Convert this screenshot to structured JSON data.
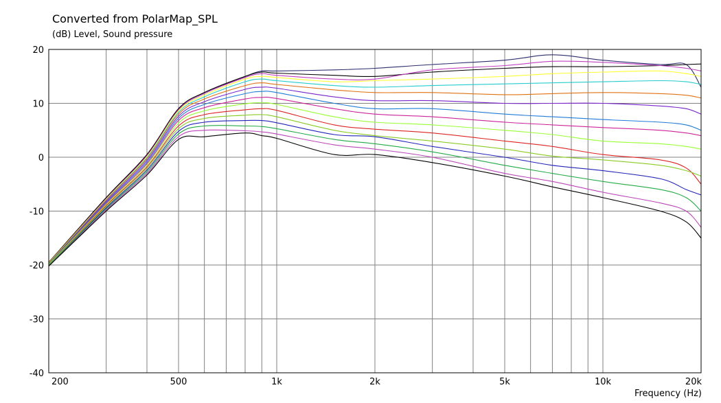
{
  "chart_data": {
    "type": "line",
    "title": "Converted from PolarMap_SPL",
    "ylabel": "(dB)  Level, Sound pressure",
    "xlabel": "Frequency  (Hz)",
    "x_scale": "log",
    "xlim": [
      200,
      20000
    ],
    "ylim": [
      -40,
      20
    ],
    "grid": true,
    "y_ticks": [
      "20",
      "10",
      "0",
      "-10",
      "-20",
      "-30",
      "-40"
    ],
    "x_ticks": [
      {
        "value": 200,
        "label": "200"
      },
      {
        "value": 500,
        "label": "500"
      },
      {
        "value": 1000,
        "label": "1k"
      },
      {
        "value": 2000,
        "label": "2k"
      },
      {
        "value": 5000,
        "label": "5k"
      },
      {
        "value": 10000,
        "label": "10k"
      },
      {
        "value": 20000,
        "label": "20k"
      }
    ],
    "x": [
      200,
      300,
      400,
      500,
      600,
      800,
      900,
      1000,
      1500,
      2000,
      3000,
      5000,
      7000,
      10000,
      15000,
      18000,
      20000
    ],
    "series": [
      {
        "color": "#2b2b6e",
        "values": [
          -19.5,
          -7.5,
          0.5,
          9.0,
          12.0,
          15.0,
          16.0,
          16.0,
          16.2,
          16.5,
          17.2,
          18.0,
          19.0,
          18.0,
          17.2,
          17.2,
          13.0
        ]
      },
      {
        "color": "#000000",
        "values": [
          -19.5,
          -7.5,
          0.5,
          9.0,
          12.0,
          15.0,
          15.8,
          15.6,
          15.2,
          15.0,
          15.8,
          16.5,
          16.8,
          16.8,
          17.0,
          17.2,
          17.3
        ]
      },
      {
        "color": "#c040c0",
        "values": [
          -19.6,
          -7.7,
          0.3,
          8.8,
          11.8,
          14.8,
          15.5,
          15.2,
          14.5,
          14.5,
          16.2,
          17.0,
          17.8,
          17.6,
          17.0,
          16.5,
          16.0
        ]
      },
      {
        "color": "#ffff33",
        "values": [
          -19.6,
          -7.8,
          0.1,
          8.6,
          11.5,
          14.5,
          15.0,
          14.8,
          14.0,
          14.2,
          14.5,
          15.0,
          15.5,
          15.8,
          16.0,
          15.5,
          15.0
        ]
      },
      {
        "color": "#22cccc",
        "values": [
          -19.7,
          -7.9,
          -0.1,
          8.3,
          11.2,
          14.0,
          14.5,
          14.2,
          13.3,
          13.0,
          13.3,
          13.6,
          13.8,
          14.0,
          14.2,
          14.0,
          13.5
        ]
      },
      {
        "color": "#e07010",
        "values": [
          -19.7,
          -8.0,
          -0.3,
          8.0,
          10.8,
          13.3,
          13.8,
          13.5,
          12.5,
          12.0,
          12.0,
          11.6,
          11.8,
          12.0,
          11.8,
          11.5,
          11.0
        ]
      },
      {
        "color": "#7722cc",
        "values": [
          -19.8,
          -8.2,
          -0.6,
          7.6,
          10.3,
          12.6,
          13.0,
          12.8,
          11.2,
          10.5,
          10.5,
          10.0,
          10.0,
          10.0,
          9.5,
          9.0,
          8.0
        ]
      },
      {
        "color": "#1e7bd8",
        "values": [
          -19.8,
          -8.4,
          -0.9,
          7.2,
          9.8,
          11.8,
          12.2,
          12.0,
          10.0,
          9.0,
          9.0,
          8.0,
          7.5,
          7.0,
          6.5,
          6.0,
          5.0
        ]
      },
      {
        "color": "#cc2299",
        "values": [
          -19.9,
          -8.6,
          -1.2,
          6.8,
          9.2,
          10.8,
          11.1,
          10.9,
          9.0,
          8.0,
          7.5,
          6.5,
          6.0,
          5.5,
          5.0,
          4.5,
          4.0
        ]
      },
      {
        "color": "#99ff33",
        "values": [
          -19.9,
          -8.8,
          -1.5,
          6.3,
          8.6,
          9.9,
          10.1,
          9.8,
          7.5,
          6.5,
          6.0,
          5.0,
          4.2,
          3.0,
          2.5,
          2.0,
          1.5
        ]
      },
      {
        "color": "#dd2222",
        "values": [
          -20.0,
          -9.0,
          -1.8,
          5.8,
          7.9,
          8.8,
          9.0,
          8.7,
          6.0,
          5.2,
          4.5,
          3.0,
          2.0,
          0.5,
          -0.5,
          -2.0,
          -5.0
        ]
      },
      {
        "color": "#88cc22",
        "values": [
          -20.0,
          -9.2,
          -2.1,
          5.3,
          7.2,
          7.8,
          7.9,
          7.5,
          5.0,
          4.0,
          3.0,
          1.5,
          0.2,
          -0.5,
          -1.5,
          -2.5,
          -3.5
        ]
      },
      {
        "color": "#2222bb",
        "values": [
          -20.1,
          -9.4,
          -2.4,
          4.8,
          6.5,
          6.8,
          6.8,
          6.4,
          4.2,
          3.8,
          2.0,
          0.0,
          -1.5,
          -2.5,
          -4.0,
          -6.0,
          -7.0
        ]
      },
      {
        "color": "#22aa44",
        "values": [
          -20.1,
          -9.6,
          -2.7,
          4.3,
          5.8,
          5.8,
          5.7,
          5.3,
          3.3,
          2.5,
          1.0,
          -1.5,
          -3.0,
          -4.5,
          -6.0,
          -7.5,
          -10.0
        ]
      },
      {
        "color": "#bb44bb",
        "values": [
          -20.2,
          -9.8,
          -3.0,
          3.8,
          5.0,
          4.9,
          4.7,
          4.3,
          2.3,
          1.5,
          0.0,
          -3.0,
          -4.5,
          -6.5,
          -8.5,
          -10.0,
          -13.0
        ]
      },
      {
        "color": "#000000",
        "values": [
          -20.2,
          -10.0,
          -3.3,
          3.3,
          3.8,
          4.5,
          4.0,
          3.5,
          0.5,
          0.5,
          -1.0,
          -3.5,
          -5.5,
          -7.5,
          -10.0,
          -12.0,
          -15.0
        ]
      }
    ]
  }
}
